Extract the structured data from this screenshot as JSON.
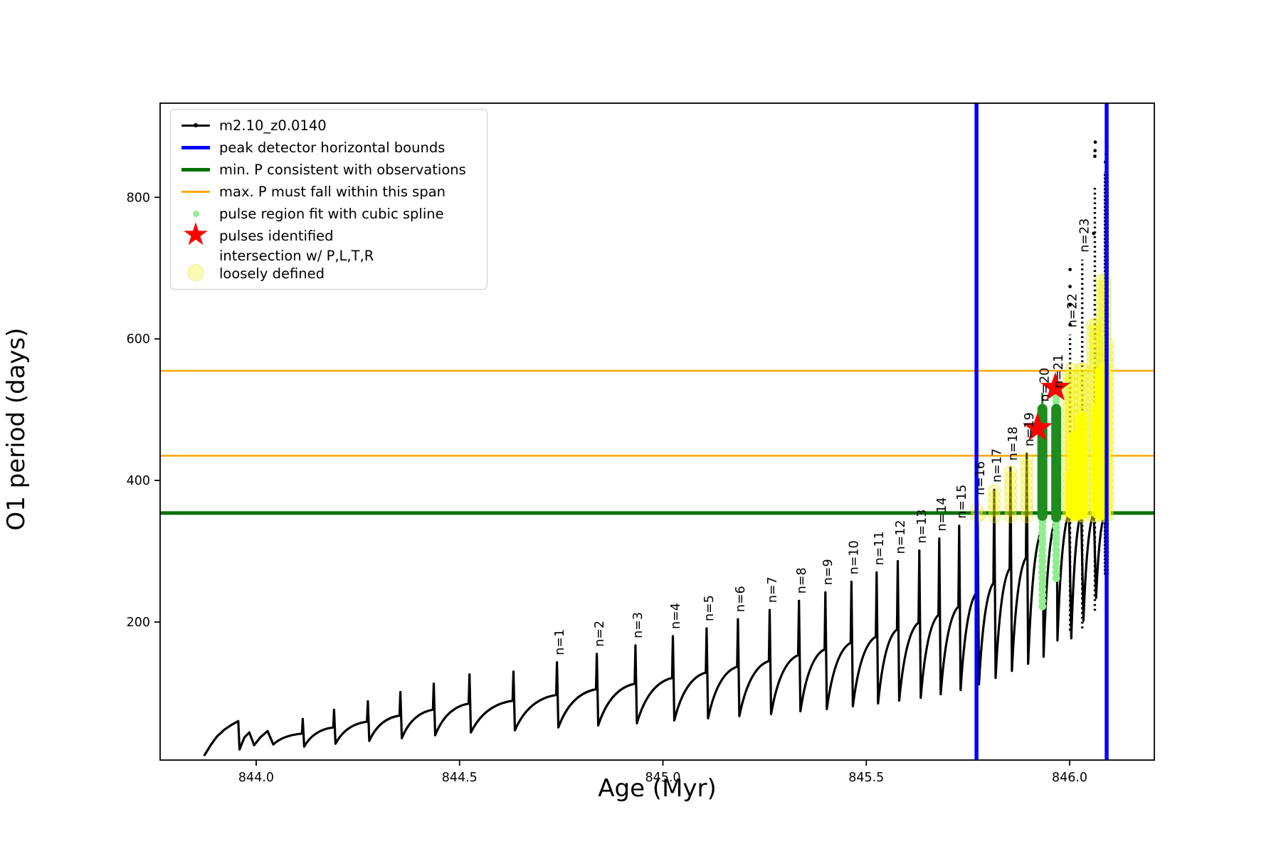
{
  "legend": {
    "items": [
      {
        "label": "m2.10_z0.0140",
        "marker": "black-line-dot"
      },
      {
        "label": "peak detector horizontal bounds",
        "marker": "blue-line"
      },
      {
        "label": "min. P consistent with observations",
        "marker": "green-line"
      },
      {
        "label": "max. P must fall within this span",
        "marker": "orange-line"
      },
      {
        "label": "pulse region fit with cubic spline",
        "marker": "lightgreen-dot"
      },
      {
        "label": "pulses identified",
        "marker": "red-star"
      }
    ],
    "last_item": {
      "label_line1": "intersection w/ P,L,T,R",
      "label_line2": "loosely defined",
      "marker": "paleyellow-dot"
    }
  },
  "chart_data": {
    "type": "line",
    "title": "",
    "xlabel": "Age (Myr)",
    "ylabel": "O1 period (days)",
    "series_name": "m2.10_z0.0140",
    "xlim": [
      843.7638,
      846.2082
    ],
    "ylim": [
      5,
      933
    ],
    "xticks": [
      {
        "v": 844.0,
        "label": "844.0"
      },
      {
        "v": 844.5,
        "label": "844.5"
      },
      {
        "v": 845.0,
        "label": "845.0"
      },
      {
        "v": 845.5,
        "label": "845.5"
      },
      {
        "v": 846.0,
        "label": "846.0"
      }
    ],
    "yticks": [
      {
        "v": 200,
        "label": "200"
      },
      {
        "v": 400,
        "label": "400"
      },
      {
        "v": 600,
        "label": "600"
      },
      {
        "v": 800,
        "label": "800"
      }
    ],
    "grid": false,
    "legend_position": "upper left",
    "colors": {
      "data": "#000000",
      "bounds": "#0000ff",
      "min_p": "#007000",
      "max_p": "#ffa500",
      "spline_region": "#90ee90",
      "pulse_star": "#ff0000",
      "intersection": "#ffff00",
      "pulse_fill": "#1e8c1e"
    },
    "vlines": [
      {
        "x": 845.771,
        "color": "#0000ff",
        "name": "peak-detector-left-bound"
      },
      {
        "x": 846.091,
        "color": "#0000ff",
        "name": "peak-detector-right-bound"
      }
    ],
    "hlines": [
      {
        "y": 555,
        "color": "#ffa500",
        "name": "max-p-span-upper"
      },
      {
        "y": 435,
        "color": "#ffa500",
        "name": "max-p-span-lower"
      },
      {
        "y": 354,
        "color": "#007000",
        "name": "min-p-observed"
      }
    ],
    "lead_in": [
      [
        843.873,
        12
      ],
      [
        843.888,
        26
      ],
      [
        843.903,
        38
      ],
      [
        843.922,
        48
      ],
      [
        843.94,
        55
      ],
      [
        843.956,
        60
      ],
      [
        843.959,
        20
      ],
      [
        843.971,
        37
      ],
      [
        843.983,
        44
      ],
      [
        843.995,
        26
      ],
      [
        844.01,
        37
      ],
      [
        844.028,
        46
      ],
      [
        844.042,
        27
      ]
    ],
    "pulses": [
      {
        "n": "",
        "age": 844.115,
        "peak": 63,
        "trough": 20
      },
      {
        "n": "",
        "age": 844.192,
        "peak": 76,
        "trough": 24
      },
      {
        "n": "",
        "age": 844.275,
        "peak": 88,
        "trough": 28
      },
      {
        "n": "",
        "age": 844.355,
        "peak": 101,
        "trough": 32
      },
      {
        "n": "",
        "age": 844.437,
        "peak": 113,
        "trough": 36
      },
      {
        "n": "",
        "age": 844.525,
        "peak": 126,
        "trough": 40
      },
      {
        "n": "",
        "age": 844.633,
        "peak": 130,
        "trough": 44
      },
      {
        "n": "n=1",
        "age": 844.74,
        "peak": 143,
        "trough": 47
      },
      {
        "n": "n=2",
        "age": 844.838,
        "peak": 155,
        "trough": 51
      },
      {
        "n": "n=3",
        "age": 844.933,
        "peak": 167,
        "trough": 54
      },
      {
        "n": "n=4",
        "age": 845.025,
        "peak": 180,
        "trough": 57
      },
      {
        "n": "n=5",
        "age": 845.108,
        "peak": 191,
        "trough": 61
      },
      {
        "n": "n=6",
        "age": 845.185,
        "peak": 204,
        "trough": 64
      },
      {
        "n": "n=7",
        "age": 845.263,
        "peak": 217,
        "trough": 67
      },
      {
        "n": "n=8",
        "age": 845.335,
        "peak": 230,
        "trough": 70
      },
      {
        "n": "n=9",
        "age": 845.4,
        "peak": 242,
        "trough": 74
      },
      {
        "n": "n=10",
        "age": 845.464,
        "peak": 257,
        "trough": 77
      },
      {
        "n": "n=11",
        "age": 845.526,
        "peak": 270,
        "trough": 81
      },
      {
        "n": "n=12",
        "age": 845.578,
        "peak": 286,
        "trough": 85
      },
      {
        "n": "n=13",
        "age": 845.631,
        "peak": 301,
        "trough": 89
      },
      {
        "n": "n=14",
        "age": 845.68,
        "peak": 318,
        "trough": 93
      },
      {
        "n": "n=15",
        "age": 845.729,
        "peak": 336,
        "trough": 98
      },
      {
        "n": "n=16",
        "age": 845.774,
        "peak": 369,
        "trough": 104
      },
      {
        "n": "n=17",
        "age": 845.815,
        "peak": 387,
        "trough": 112
      },
      {
        "n": "n=18",
        "age": 845.855,
        "peak": 418,
        "trough": 121
      },
      {
        "n": "n=19",
        "age": 845.895,
        "peak": 438,
        "trough": 131
      },
      {
        "n": "n=20",
        "age": 845.933,
        "peak": 501,
        "trough": 141
      },
      {
        "n": "n=21",
        "age": 845.967,
        "peak": 520,
        "trough": 151
      },
      {
        "n": "n=22",
        "age": 846.001,
        "peak": 606,
        "trough": 174,
        "dashed": true
      },
      {
        "n": "n=23",
        "age": 846.031,
        "peak": 712,
        "trough": 177,
        "dashed": true
      },
      {
        "n": "",
        "age": 846.062,
        "peak": 817,
        "trough": 202,
        "dashed": true
      },
      {
        "n": "",
        "age": 846.09,
        "peak": 836,
        "trough": 234,
        "final": true
      }
    ],
    "stars": [
      {
        "age": 845.921,
        "period": 474
      },
      {
        "age": 845.965,
        "period": 531
      }
    ],
    "yellow_columns": [
      {
        "age": 845.7715,
        "from": 350,
        "to": 364
      },
      {
        "age": 845.779,
        "from": 351,
        "to": 357
      },
      {
        "age": 845.815,
        "from": 349,
        "to": 387
      },
      {
        "age": 845.855,
        "from": 349,
        "to": 418
      },
      {
        "age": 845.8945,
        "from": 349,
        "to": 438
      },
      {
        "age": 845.997,
        "from": 350,
        "to": 556
      },
      {
        "age": 846.004,
        "from": 350,
        "to": 558
      },
      {
        "age": 846.026,
        "from": 350,
        "to": 560
      },
      {
        "age": 846.033,
        "from": 350,
        "to": 560
      },
      {
        "age": 846.057,
        "from": 350,
        "to": 626
      },
      {
        "age": 846.064,
        "from": 350,
        "to": 626
      },
      {
        "age": 846.08,
        "from": 350,
        "to": 688
      },
      {
        "age": 846.087,
        "from": 350,
        "to": 688
      },
      {
        "age": 846.0935,
        "from": 350,
        "to": 598
      }
    ],
    "yellow_solid": [
      {
        "age": 846.004,
        "from": 354,
        "to": 406,
        "w": 16
      },
      {
        "age": 846.016,
        "from": 354,
        "to": 460,
        "w": 22
      },
      {
        "age": 846.029,
        "from": 354,
        "to": 488,
        "w": 18
      },
      {
        "age": 846.068,
        "from": 354,
        "to": 500,
        "w": 16
      },
      {
        "age": 846.079,
        "from": 354,
        "to": 552,
        "w": 20
      },
      {
        "age": 846.0875,
        "from": 354,
        "to": 560,
        "w": 16
      }
    ],
    "green_columns": [
      {
        "age": 845.933,
        "from": 350,
        "to": 501,
        "spike_to": 524
      },
      {
        "age": 845.967,
        "from": 348,
        "to": 501,
        "spike_to": null
      }
    ],
    "lightgreen_columns": [
      {
        "age": 845.933,
        "from": 222,
        "to": 349
      },
      {
        "age": 845.967,
        "from": 262,
        "to": 347
      },
      {
        "age": 845.967,
        "from": 504,
        "to": 528
      }
    ],
    "sparse_dots": [
      [
        846.001,
        620
      ],
      [
        846.001,
        648
      ],
      [
        846.001,
        674
      ],
      [
        846.001,
        698
      ],
      [
        846.059,
        749
      ],
      [
        846.062,
        858
      ],
      [
        846.0625,
        866
      ],
      [
        846.063,
        878
      ],
      [
        846.088,
        850
      ],
      [
        846.09,
        861
      ],
      [
        846.092,
        872
      ]
    ]
  }
}
